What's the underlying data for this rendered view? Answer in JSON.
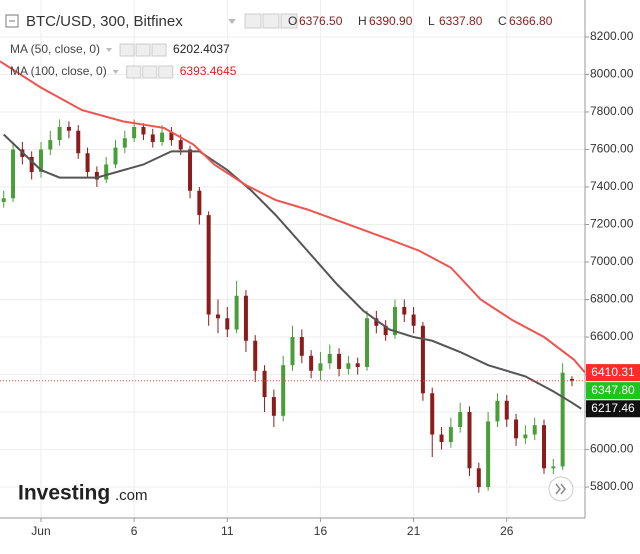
{
  "chart_data": {
    "type": "candlestick",
    "title": "BTC/USD, 300, Bitfinex",
    "ohlc_labels": [
      {
        "key": "O",
        "value": "6376.50"
      },
      {
        "key": "H",
        "value": "6390.90"
      },
      {
        "key": "L",
        "value": "6337.80"
      },
      {
        "key": "C",
        "value": "6366.80"
      }
    ],
    "x": [
      -1,
      -0.5,
      0,
      0.5,
      1,
      1.5,
      2,
      2.5,
      3,
      3.5,
      4,
      4.5,
      5,
      5.5,
      6,
      6.5,
      7,
      7.5,
      8,
      8.5,
      9,
      9.5,
      10,
      10.5,
      11,
      11.5,
      12,
      12.5,
      13,
      13.5,
      14,
      14.5,
      15,
      15.5,
      16,
      16.5,
      17,
      17.5,
      18,
      18.5,
      19,
      19.5,
      20,
      20.5,
      21,
      21.5,
      22,
      22.5,
      23,
      23.5,
      24,
      24.5,
      25,
      25.5,
      26,
      26.5,
      27,
      27.5,
      28,
      28.5,
      29,
      29.5
    ],
    "candles": [
      [
        7320,
        7380,
        7290,
        7340
      ],
      [
        7340,
        7640,
        7320,
        7600
      ],
      [
        7600,
        7640,
        7520,
        7560
      ],
      [
        7560,
        7590,
        7440,
        7480
      ],
      [
        7480,
        7640,
        7450,
        7600
      ],
      [
        7600,
        7700,
        7570,
        7650
      ],
      [
        7650,
        7760,
        7620,
        7720
      ],
      [
        7720,
        7750,
        7660,
        7700
      ],
      [
        7700,
        7730,
        7550,
        7580
      ],
      [
        7580,
        7610,
        7450,
        7480
      ],
      [
        7480,
        7510,
        7400,
        7440
      ],
      [
        7440,
        7560,
        7420,
        7520
      ],
      [
        7520,
        7650,
        7500,
        7610
      ],
      [
        7610,
        7700,
        7580,
        7660
      ],
      [
        7660,
        7760,
        7640,
        7720
      ],
      [
        7720,
        7740,
        7650,
        7680
      ],
      [
        7680,
        7710,
        7610,
        7640
      ],
      [
        7640,
        7730,
        7620,
        7690
      ],
      [
        7690,
        7720,
        7620,
        7650
      ],
      [
        7650,
        7680,
        7570,
        7600
      ],
      [
        7600,
        7620,
        7340,
        7380
      ],
      [
        7380,
        7400,
        7200,
        7250
      ],
      [
        7250,
        7270,
        6660,
        6720
      ],
      [
        6720,
        6800,
        6620,
        6700
      ],
      [
        6700,
        6760,
        6600,
        6640
      ],
      [
        6640,
        6900,
        6620,
        6820
      ],
      [
        6820,
        6850,
        6520,
        6580
      ],
      [
        6580,
        6610,
        6360,
        6420
      ],
      [
        6420,
        6450,
        6200,
        6280
      ],
      [
        6280,
        6320,
        6120,
        6180
      ],
      [
        6180,
        6500,
        6150,
        6450
      ],
      [
        6450,
        6660,
        6420,
        6600
      ],
      [
        6600,
        6640,
        6460,
        6500
      ],
      [
        6500,
        6530,
        6380,
        6420
      ],
      [
        6420,
        6520,
        6370,
        6460
      ],
      [
        6460,
        6560,
        6430,
        6510
      ],
      [
        6510,
        6540,
        6390,
        6430
      ],
      [
        6430,
        6500,
        6400,
        6460
      ],
      [
        6460,
        6490,
        6400,
        6440
      ],
      [
        6440,
        6740,
        6420,
        6700
      ],
      [
        6700,
        6740,
        6620,
        6660
      ],
      [
        6660,
        6690,
        6580,
        6610
      ],
      [
        6610,
        6800,
        6590,
        6760
      ],
      [
        6760,
        6800,
        6680,
        6720
      ],
      [
        6720,
        6760,
        6620,
        6660
      ],
      [
        6660,
        6680,
        6260,
        6300
      ],
      [
        6300,
        6330,
        5960,
        6080
      ],
      [
        6080,
        6120,
        6000,
        6040
      ],
      [
        6040,
        6170,
        6010,
        6120
      ],
      [
        6120,
        6250,
        6090,
        6200
      ],
      [
        6200,
        6230,
        5860,
        5900
      ],
      [
        5900,
        5930,
        5770,
        5800
      ],
      [
        5800,
        6200,
        5780,
        6150
      ],
      [
        6150,
        6300,
        6120,
        6260
      ],
      [
        6260,
        6290,
        6120,
        6160
      ],
      [
        6160,
        6190,
        6020,
        6060
      ],
      [
        6060,
        6130,
        6030,
        6080
      ],
      [
        6080,
        6170,
        6050,
        6130
      ],
      [
        6130,
        6160,
        5870,
        5900
      ],
      [
        5900,
        5950,
        5870,
        5910
      ],
      [
        5910,
        6460,
        5890,
        6410
      ],
      [
        6376.5,
        6390.9,
        6337.8,
        6366.8
      ]
    ],
    "up_color": "#4a9e3a",
    "down_color": "#8b1c1c",
    "series": [
      {
        "name": "MA (50, close, 0)",
        "color": "#555555",
        "last_value": "6202.4037",
        "x": [
          -1,
          1,
          2,
          4,
          6.5,
          8,
          9.5,
          11,
          12.3,
          13.6,
          15.3,
          16.9,
          18.3,
          19.7,
          21,
          22,
          23.5,
          25,
          27,
          28.5,
          29.5,
          30
        ],
        "values": [
          7680,
          7490,
          7450,
          7450,
          7520,
          7590,
          7590,
          7490,
          7380,
          7250,
          7060,
          6880,
          6740,
          6640,
          6600,
          6580,
          6520,
          6450,
          6390,
          6310,
          6250,
          6217.46
        ]
      },
      {
        "name": "MA (100, close, 0)",
        "color": "#ef5350",
        "last_value": "6393.4645",
        "x": [
          -1.2,
          1,
          3.2,
          5.4,
          7.6,
          9.2,
          10.3,
          12,
          13.6,
          15.3,
          17.5,
          19.7,
          21.3,
          23,
          24.6,
          26.3,
          28,
          29.6,
          30.2
        ],
        "values": [
          8070,
          7930,
          7810,
          7750,
          7715,
          7625,
          7520,
          7410,
          7330,
          7280,
          7200,
          7120,
          7060,
          6970,
          6800,
          6690,
          6600,
          6480,
          6410.31
        ]
      }
    ],
    "price_tags": [
      {
        "value": 6410.31,
        "label": "6410.31",
        "color": "#ff2b2b"
      },
      {
        "value": 6347.8,
        "label": "6347.80",
        "color": "#1fc41f"
      },
      {
        "value": 6217.46,
        "label": "6217.46",
        "color": "#111111"
      }
    ],
    "xlim": [
      -1.2,
      30.2
    ],
    "xticks": [
      {
        "value": 1,
        "label": "Jun"
      },
      6,
      11,
      16,
      21,
      26
    ],
    "ylim": [
      5635,
      8397
    ],
    "yticks": [
      {
        "value": 5800,
        "label": "5800.00"
      },
      {
        "value": 6000,
        "label": "6000.00"
      },
      {
        "value": 6200,
        "label": "6200.00"
      },
      {
        "value": 6400,
        "label": "6400.00"
      },
      {
        "value": 6600,
        "label": "6600.00"
      },
      {
        "value": 6800,
        "label": "6800.00"
      },
      {
        "value": 7000,
        "label": "7000.00"
      },
      {
        "value": 7200,
        "label": "7200.00"
      },
      {
        "value": 7400,
        "label": "7400.00"
      },
      {
        "value": 7600,
        "label": "7600.00"
      },
      {
        "value": 7800,
        "label": "7800.00"
      },
      {
        "value": 8000,
        "label": "8000.00"
      },
      {
        "value": 8200,
        "label": "8200.00"
      }
    ],
    "grid": true,
    "watermark": [
      "Investing",
      ".com"
    ]
  }
}
